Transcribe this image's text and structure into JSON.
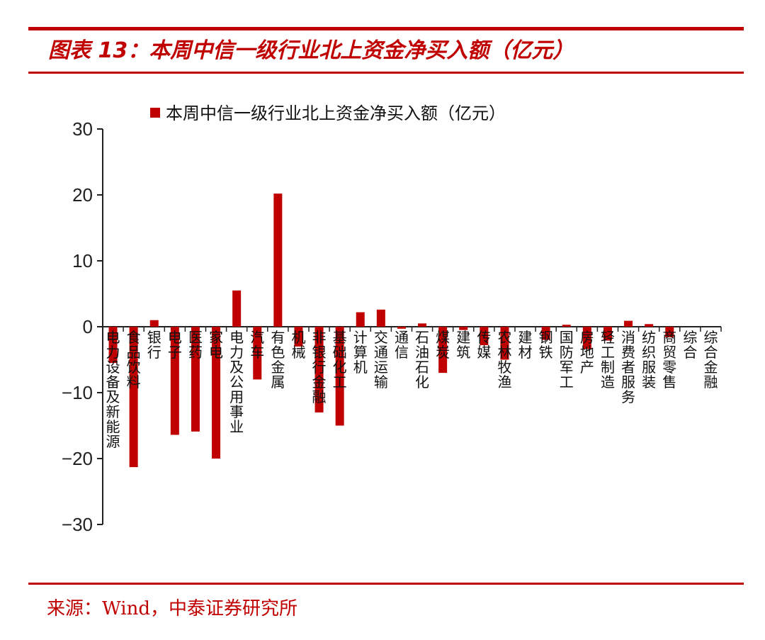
{
  "header": {
    "figure_title": "图表 13：本周中信一级行业北上资金净买入额（亿元）"
  },
  "footer": {
    "source": "来源：Wind，中泰证券研究所"
  },
  "colors": {
    "accent": "#c00000",
    "bar": "#c00000",
    "axis": "#222222"
  },
  "chart_data": {
    "type": "bar",
    "title": "",
    "xlabel": "",
    "ylabel": "",
    "ylim": [
      -30,
      30
    ],
    "yticks": [
      30,
      20,
      10,
      0,
      -10,
      -20,
      -30
    ],
    "ytick_labels": [
      "30",
      "20",
      "10",
      "0",
      "−10",
      "−20",
      "−30"
    ],
    "legend": {
      "position": "top-center"
    },
    "categories": [
      "电力设备及新能源",
      "食品饮料",
      "银行",
      "电子",
      "医药",
      "家电",
      "电力及公用事业",
      "汽车",
      "有色金属",
      "机械",
      "非银行金融",
      "基础化工",
      "计算机",
      "交通运输",
      "通信",
      "石油石化",
      "煤炭",
      "建筑",
      "传媒",
      "农林牧渔",
      "建材",
      "钢铁",
      "国防军工",
      "房地产",
      "轻工制造",
      "消费者服务",
      "纺织服装",
      "商贸零售",
      "综合",
      "综合金融"
    ],
    "series": [
      {
        "name": "本周中信一级行业北上资金净买入额（亿元）",
        "values": [
          -5.5,
          -21.3,
          1.0,
          -16.4,
          -15.9,
          -20.0,
          5.5,
          -8.0,
          20.2,
          -3.0,
          -13.0,
          -15.0,
          2.2,
          2.6,
          -0.3,
          0.5,
          -7.0,
          -0.5,
          -2.8,
          -5.0,
          0.0,
          -2.0,
          0.3,
          -3.4,
          -2.1,
          0.9,
          0.4,
          -1.6,
          0.0,
          0.0
        ]
      }
    ]
  }
}
